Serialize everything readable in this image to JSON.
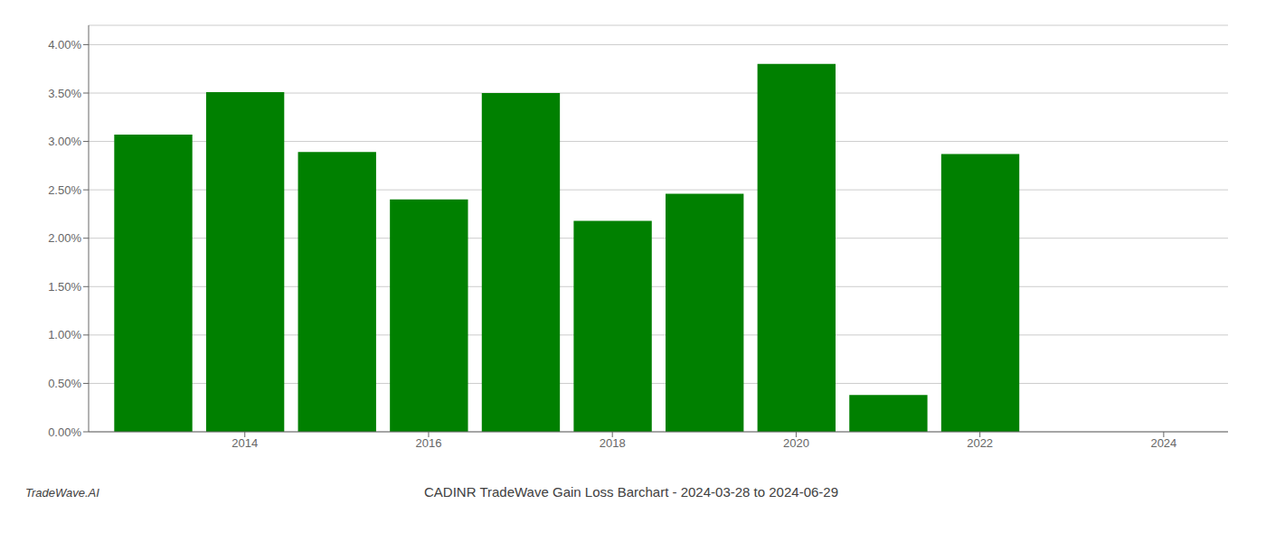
{
  "chart_data": {
    "type": "bar",
    "title": "CADINR TradeWave Gain Loss Barchart - 2024-03-28 to 2024-06-29",
    "annotations": [
      "TradeWave.AI"
    ],
    "x": [
      2013,
      2014,
      2015,
      2016,
      2017,
      2018,
      2019,
      2020,
      2021,
      2022,
      2023
    ],
    "values": [
      0.0307,
      0.0351,
      0.0289,
      0.024,
      0.035,
      0.0218,
      0.0246,
      0.038,
      0.0038,
      0.0287,
      0.0
    ],
    "color": "#008000",
    "xlim": [
      2012.3,
      2024.7
    ],
    "xticks": [
      2014,
      2016,
      2018,
      2020,
      2022,
      2024
    ],
    "ylim": [
      0,
      0.042
    ],
    "yticks": [
      {
        "value": 0.0,
        "label": "0.00%"
      },
      {
        "value": 0.005,
        "label": "0.50%"
      },
      {
        "value": 0.01,
        "label": "1.00%"
      },
      {
        "value": 0.015,
        "label": "1.50%"
      },
      {
        "value": 0.02,
        "label": "2.00%"
      },
      {
        "value": 0.025,
        "label": "2.50%"
      },
      {
        "value": 0.03,
        "label": "3.00%"
      },
      {
        "value": 0.035,
        "label": "3.50%"
      },
      {
        "value": 0.04,
        "label": "4.00%"
      }
    ],
    "grid": true
  }
}
